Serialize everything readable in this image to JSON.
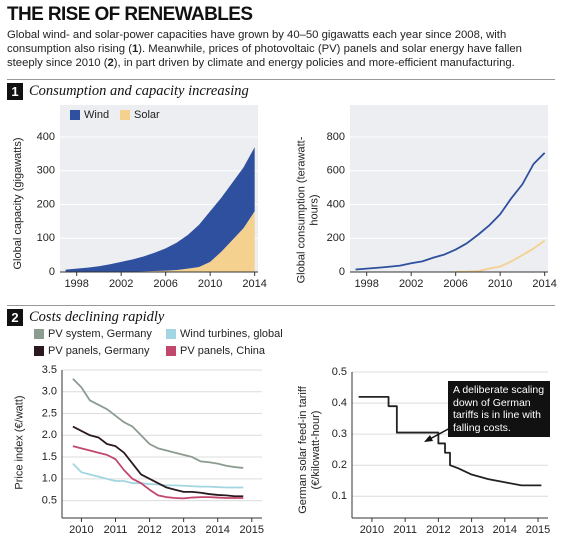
{
  "header": {
    "title": "THE RISE OF RENEWABLES",
    "description": [
      "Global wind- and solar-power capacities have grown by 40–50 gigawatts each year since 2008, with consumption also rising (",
      "1",
      "). Meanwhile, prices of photovoltaic (PV) panels and solar energy have fallen steeply since 2010 (",
      "2",
      "), in part driven by climate and energy policies and more-efficient manufacturing."
    ]
  },
  "sections": [
    {
      "number": "1",
      "title": "Consumption and capacity increasing"
    },
    {
      "number": "2",
      "title": "Costs declining rapidly"
    }
  ],
  "chart_data": [
    {
      "type": "area",
      "stacked": true,
      "ylabel": "Global capacity (gigawatts)",
      "legend": "top-left",
      "grid": true,
      "x": [
        1997,
        1998,
        1999,
        2000,
        2001,
        2002,
        2003,
        2004,
        2005,
        2006,
        2007,
        2008,
        2009,
        2010,
        2011,
        2012,
        2013,
        2014
      ],
      "series": [
        {
          "name": "Wind",
          "color": "#2f4f9f",
          "values": [
            7,
            10,
            13,
            17,
            23,
            30,
            36,
            44,
            54,
            66,
            81,
            100,
            125,
            150,
            160,
            170,
            180,
            190
          ]
        },
        {
          "name": "Solar",
          "color": "#f4d18f",
          "values": [
            0,
            0,
            0,
            0,
            0,
            0,
            1,
            2,
            3,
            4,
            6,
            10,
            15,
            30,
            60,
            95,
            130,
            180
          ]
        }
      ],
      "xlim": [
        1996.5,
        2014.3
      ],
      "xticks": [
        1998,
        2002,
        2006,
        2010,
        2014
      ],
      "ylim": [
        0,
        400
      ],
      "yticks": [
        0,
        100,
        200,
        300,
        400
      ]
    },
    {
      "type": "line",
      "ylabel": "Global consumption (terawatt-hours)",
      "grid": true,
      "x": [
        1997,
        1998,
        1999,
        2000,
        2001,
        2002,
        2003,
        2004,
        2005,
        2006,
        2007,
        2008,
        2009,
        2010,
        2011,
        2012,
        2013,
        2014
      ],
      "series": [
        {
          "color": "#2f4f9f",
          "values": [
            15,
            20,
            25,
            31,
            38,
            52,
            63,
            85,
            104,
            133,
            170,
            220,
            275,
            342,
            437,
            520,
            640,
            706
          ]
        },
        {
          "color": "#f4d18f",
          "values": [
            null,
            null,
            null,
            null,
            null,
            null,
            null,
            null,
            null,
            1,
            2,
            5,
            20,
            32,
            63,
            100,
            139,
            186
          ]
        }
      ],
      "xlim": [
        1996.5,
        2014.3
      ],
      "xticks": [
        1998,
        2002,
        2006,
        2010,
        2014
      ],
      "ylim": [
        0,
        800
      ],
      "yticks": [
        0,
        200,
        400,
        600,
        800
      ]
    },
    {
      "type": "line",
      "ylabel": "Price index (€/watt)",
      "legend": "above",
      "grid": true,
      "x": [
        2009.75,
        2010,
        2010.25,
        2010.5,
        2010.75,
        2011,
        2011.25,
        2011.5,
        2011.75,
        2012,
        2012.25,
        2012.5,
        2012.75,
        2013,
        2013.25,
        2013.5,
        2013.75,
        2014,
        2014.25,
        2014.5,
        2014.75
      ],
      "series": [
        {
          "name": "PV system, Germany",
          "color": "#8c9c90",
          "values": [
            3.3,
            3.1,
            2.8,
            2.7,
            2.6,
            2.45,
            2.3,
            2.2,
            2.0,
            1.8,
            1.7,
            1.65,
            1.6,
            1.55,
            1.5,
            1.4,
            1.38,
            1.35,
            1.3,
            1.27,
            1.25
          ]
        },
        {
          "name": "Wind turbines, global",
          "color": "#a3d5e2",
          "values": [
            1.35,
            1.15,
            1.1,
            1.05,
            1.0,
            0.95,
            0.95,
            0.9,
            0.9,
            0.88,
            0.87,
            0.85,
            0.85,
            0.84,
            0.83,
            0.82,
            0.82,
            0.81,
            0.8,
            0.8,
            0.8
          ]
        },
        {
          "name": "PV panels, Germany",
          "color": "#2a1a1e",
          "values": [
            2.2,
            2.1,
            2.0,
            1.95,
            1.8,
            1.75,
            1.6,
            1.35,
            1.1,
            1.0,
            0.9,
            0.8,
            0.75,
            0.7,
            0.7,
            0.68,
            0.65,
            0.63,
            0.62,
            0.6,
            0.6
          ]
        },
        {
          "name": "PV panels, China",
          "color": "#c2476c",
          "values": [
            1.75,
            1.7,
            1.65,
            1.6,
            1.55,
            1.45,
            1.2,
            1.0,
            0.9,
            0.75,
            0.62,
            0.58,
            0.56,
            0.55,
            0.57,
            0.58,
            0.58,
            0.57,
            0.56,
            0.56,
            0.56
          ]
        }
      ],
      "xlim": [
        2009.43,
        2015.3
      ],
      "xticks": [
        2010,
        2011,
        2012,
        2013,
        2014,
        2015
      ],
      "ylim": [
        0.1,
        3.5
      ],
      "yticks": [
        0.5,
        {
          "value": 1,
          "label": "1.0"
        },
        1.5,
        {
          "value": 2,
          "label": "2.0"
        },
        2.5,
        {
          "value": 3,
          "label": "3.0"
        },
        3.5
      ]
    },
    {
      "type": "line",
      "ylabel": "German solar feed-in tariff (€/kilowatt-hour)",
      "grid": true,
      "color": "#222222",
      "annotation": "A deliberate scaling down of German tariffs is in line with falling costs.",
      "x": [
        2009.6,
        2010.5,
        2010.5,
        2010.75,
        2010.75,
        2012,
        2012,
        2012.2,
        2012.2,
        2012.35,
        2012.35,
        2012.6,
        2013,
        2013.5,
        2014,
        2014.5,
        2015.1
      ],
      "values": [
        0.42,
        0.42,
        0.39,
        0.39,
        0.305,
        0.305,
        0.27,
        0.27,
        0.24,
        0.24,
        0.2,
        0.19,
        0.17,
        0.155,
        0.145,
        0.135,
        0.135
      ],
      "xlim": [
        2009.4,
        2015.3
      ],
      "xticks": [
        2010,
        2011,
        2012,
        2013,
        2014,
        2015
      ],
      "ylim": [
        0.03,
        0.5
      ],
      "yticks": [
        0.1,
        0.2,
        0.3,
        0.4,
        0.5
      ]
    }
  ]
}
